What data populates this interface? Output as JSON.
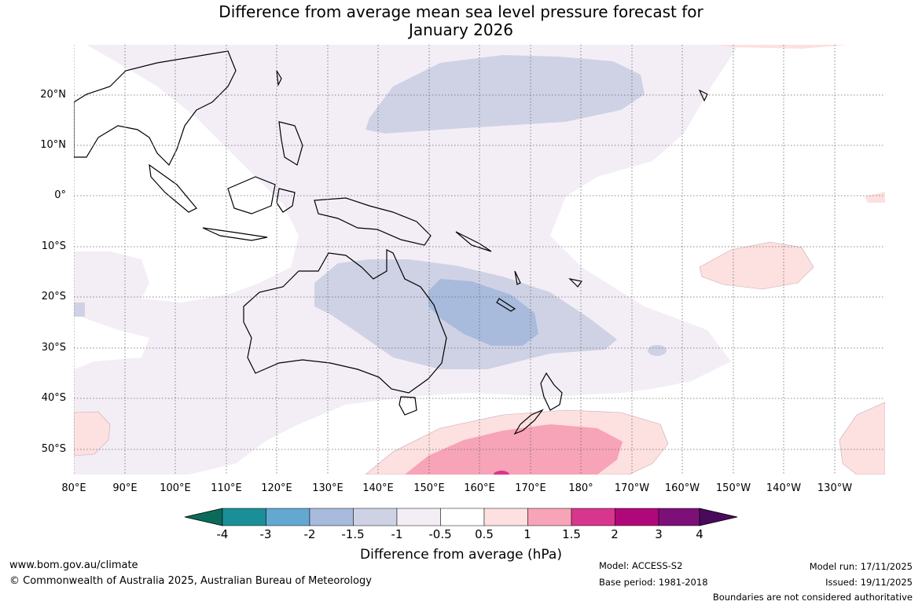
{
  "title_line1": "Difference from average mean sea level pressure forecast for",
  "title_line2": "January 2026",
  "map": {
    "lon_labels": [
      "80°E",
      "90°E",
      "100°E",
      "110°E",
      "120°E",
      "130°E",
      "140°E",
      "150°E",
      "160°E",
      "170°E",
      "180°",
      "170°W",
      "160°W",
      "150°W",
      "140°W",
      "130°W"
    ],
    "lat_labels": [
      "20°N",
      "10°N",
      "0°",
      "10°S",
      "20°S",
      "30°S",
      "40°S",
      "50°S"
    ]
  },
  "colorbar": {
    "title": "Difference from average (hPa)",
    "tick_labels": [
      "-4",
      "-3",
      "-2",
      "-1.5",
      "-1",
      "-0.5",
      "0.5",
      "1",
      "1.5",
      "2",
      "3",
      "4"
    ],
    "colors": [
      "#0b6b5a",
      "#1a8f97",
      "#63a8d0",
      "#a9bbdc",
      "#cfd2e5",
      "#f3eef6",
      "#ffffff",
      "#fde0e0",
      "#f7a3b8",
      "#d8368c",
      "#b0087a",
      "#7d0f78",
      "#4a0a5c"
    ]
  },
  "footer": {
    "url": "www.bom.gov.au/climate",
    "copyright": "© Commonwealth of Australia 2025, Australian Bureau of Meteorology",
    "model": "Model: ACCESS-S2",
    "base_period": "Base period: 1981-2018",
    "model_run": "Model run: 17/11/2025",
    "issued": "Issued: 19/11/2025",
    "disclaimer": "Boundaries are not considered authoritative"
  }
}
